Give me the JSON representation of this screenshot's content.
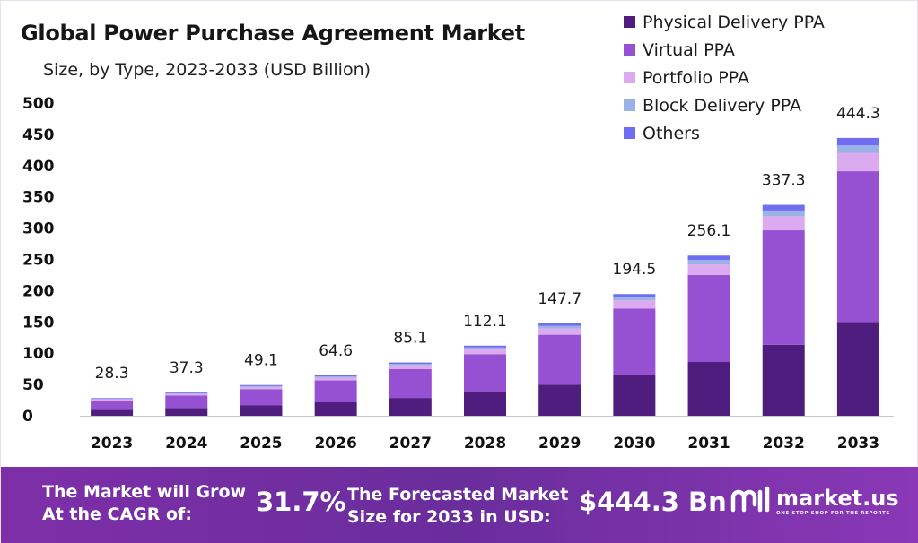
{
  "title": "Global Power Purchase Agreement Market",
  "subtitle": "Size, by Type, 2023-2033 (USD Billion)",
  "chart_data": {
    "type": "bar",
    "stacked": true,
    "categories": [
      "2023",
      "2024",
      "2025",
      "2026",
      "2027",
      "2028",
      "2029",
      "2030",
      "2031",
      "2032",
      "2033"
    ],
    "totals": [
      28.3,
      37.3,
      49.1,
      64.6,
      85.1,
      112.1,
      147.7,
      194.5,
      256.1,
      337.3,
      444.3
    ],
    "total_labels": [
      "28.3",
      "37.3",
      "49.1",
      "64.6",
      "85.1",
      "112.1",
      "147.7",
      "194.5",
      "256.1",
      "337.3",
      "444.3"
    ],
    "series": [
      {
        "name": "Physical Delivery PPA",
        "color": "#4e1d7d",
        "values": [
          9.5,
          12.5,
          16.5,
          21.5,
          28.5,
          37.5,
          49.5,
          65.5,
          86,
          113.5,
          150
        ]
      },
      {
        "name": "Virtual PPA",
        "color": "#9650d2",
        "values": [
          15,
          20,
          26,
          35,
          46,
          61,
          80,
          106,
          139,
          183,
          241
        ]
      },
      {
        "name": "Portfolio PPA",
        "color": "#dcaaee",
        "values": [
          2,
          2.5,
          3.5,
          4.5,
          6,
          7.5,
          10,
          13,
          17,
          22.5,
          29.5
        ]
      },
      {
        "name": "Block Delivery PPA",
        "color": "#9ab2e6",
        "values": [
          0.8,
          1.1,
          1.5,
          1.8,
          2.4,
          3.1,
          4.1,
          5.3,
          7.0,
          9.2,
          11.8
        ]
      },
      {
        "name": "Others",
        "color": "#6f6ef2",
        "values": [
          1.0,
          1.2,
          1.6,
          1.8,
          2.2,
          3.0,
          4.1,
          4.7,
          7.1,
          9.1,
          12.0
        ]
      }
    ],
    "yticks": [
      0,
      50,
      100,
      150,
      200,
      250,
      300,
      350,
      400,
      450,
      500
    ],
    "ylim": [
      0,
      500
    ],
    "legend_position": "top-right",
    "grid": false
  },
  "footer": {
    "cagr_label": "The Market will Grow At the CAGR of:",
    "cagr_label_line1": "The Market will Grow",
    "cagr_label_line2": "At the CAGR of:",
    "cagr_value": "31.7%",
    "forecast_label_line1": "The Forecasted Market",
    "forecast_label_line2": "Size for 2033 in USD:",
    "forecast_value": "$444.3 Bn",
    "brand_name": "market.us",
    "brand_tagline": "ONE STOP SHOP FOR THE REPORTS",
    "brand_icon": "market-us-logo-icon"
  }
}
